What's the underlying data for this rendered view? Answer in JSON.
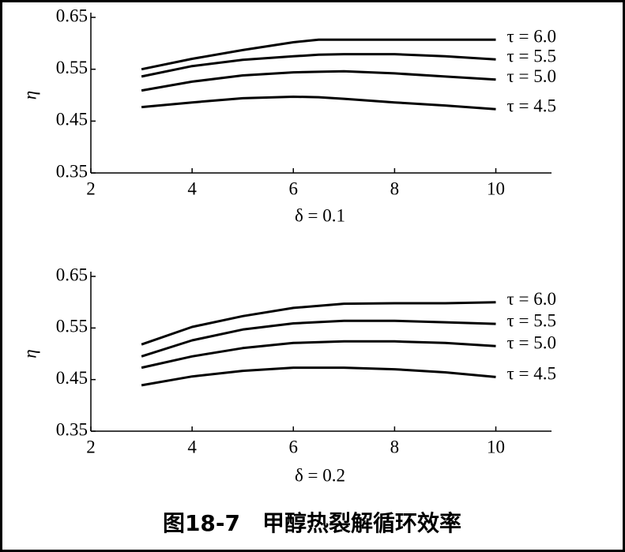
{
  "caption": "图18-7　甲醇热裂解循环效率",
  "chart_data": [
    {
      "type": "line",
      "ylabel": "η",
      "xlabel": "δ = 0.1",
      "x": [
        3,
        4,
        5,
        6,
        6.5,
        7,
        8,
        9,
        10
      ],
      "xlim": [
        2,
        11.1
      ],
      "xticks": [
        2,
        4,
        6,
        8,
        10
      ],
      "ylim": [
        0.35,
        0.65
      ],
      "yticks": [
        0.35,
        0.45,
        0.55,
        0.65
      ],
      "series": [
        {
          "name": "τ = 6.0",
          "color": "#000000",
          "values": [
            0.55,
            0.57,
            0.587,
            0.602,
            0.607,
            0.607,
            0.607,
            0.607,
            0.607
          ]
        },
        {
          "name": "τ = 5.5",
          "color": "#000000",
          "values": [
            0.536,
            0.556,
            0.568,
            0.575,
            0.578,
            0.579,
            0.579,
            0.575,
            0.569
          ]
        },
        {
          "name": "τ = 5.0",
          "color": "#000000",
          "values": [
            0.509,
            0.526,
            0.538,
            0.544,
            0.545,
            0.546,
            0.542,
            0.536,
            0.53
          ]
        },
        {
          "name": "τ = 4.5",
          "color": "#000000",
          "values": [
            0.477,
            0.486,
            0.494,
            0.497,
            0.496,
            0.493,
            0.486,
            0.48,
            0.473
          ]
        }
      ]
    },
    {
      "type": "line",
      "ylabel": "η",
      "xlabel": "δ = 0.2",
      "x": [
        3,
        4,
        5,
        6,
        7,
        8,
        9,
        10
      ],
      "xlim": [
        2,
        11.1
      ],
      "xticks": [
        2,
        4,
        6,
        8,
        10
      ],
      "ylim": [
        0.35,
        0.65
      ],
      "yticks": [
        0.35,
        0.45,
        0.55,
        0.65
      ],
      "series": [
        {
          "name": "τ = 6.0",
          "color": "#000000",
          "values": [
            0.518,
            0.552,
            0.573,
            0.589,
            0.597,
            0.598,
            0.598,
            0.6
          ]
        },
        {
          "name": "τ = 5.5",
          "color": "#000000",
          "values": [
            0.495,
            0.526,
            0.547,
            0.559,
            0.564,
            0.564,
            0.561,
            0.558
          ]
        },
        {
          "name": "τ = 5.0",
          "color": "#000000",
          "values": [
            0.473,
            0.495,
            0.511,
            0.521,
            0.524,
            0.524,
            0.521,
            0.515
          ]
        },
        {
          "name": "τ = 4.5",
          "color": "#000000",
          "values": [
            0.439,
            0.456,
            0.467,
            0.473,
            0.473,
            0.47,
            0.464,
            0.455
          ]
        }
      ]
    }
  ]
}
